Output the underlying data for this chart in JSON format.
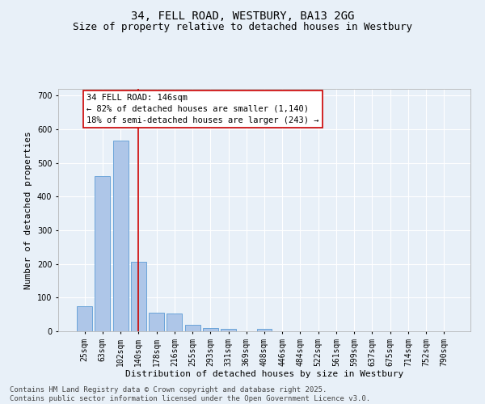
{
  "title": "34, FELL ROAD, WESTBURY, BA13 2GG",
  "subtitle": "Size of property relative to detached houses in Westbury",
  "xlabel": "Distribution of detached houses by size in Westbury",
  "ylabel": "Number of detached properties",
  "categories": [
    "25sqm",
    "63sqm",
    "102sqm",
    "140sqm",
    "178sqm",
    "216sqm",
    "255sqm",
    "293sqm",
    "331sqm",
    "369sqm",
    "408sqm",
    "446sqm",
    "484sqm",
    "522sqm",
    "561sqm",
    "599sqm",
    "637sqm",
    "675sqm",
    "714sqm",
    "752sqm",
    "790sqm"
  ],
  "values": [
    75,
    462,
    567,
    207,
    55,
    53,
    20,
    10,
    7,
    0,
    7,
    0,
    0,
    0,
    0,
    0,
    0,
    0,
    0,
    0,
    0
  ],
  "bar_color": "#aec6e8",
  "bar_edge_color": "#5b9bd5",
  "vline_x": 3,
  "vline_color": "#cc0000",
  "annotation_text": "34 FELL ROAD: 146sqm\n← 82% of detached houses are smaller (1,140)\n18% of semi-detached houses are larger (243) →",
  "annotation_box_color": "#ffffff",
  "annotation_box_edge": "#cc0000",
  "ylim": [
    0,
    720
  ],
  "yticks": [
    0,
    100,
    200,
    300,
    400,
    500,
    600,
    700
  ],
  "bg_color": "#e8f0f8",
  "grid_color": "#ffffff",
  "footer_line1": "Contains HM Land Registry data © Crown copyright and database right 2025.",
  "footer_line2": "Contains public sector information licensed under the Open Government Licence v3.0.",
  "title_fontsize": 10,
  "subtitle_fontsize": 9,
  "axis_label_fontsize": 8,
  "tick_fontsize": 7,
  "annotation_fontsize": 7.5,
  "footer_fontsize": 6.5
}
